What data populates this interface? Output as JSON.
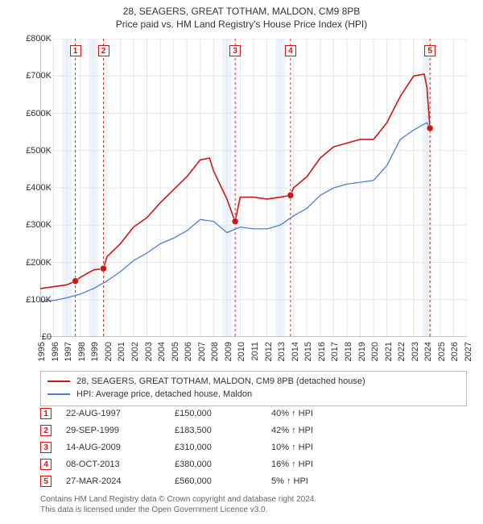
{
  "title_line1": "28, SEAGERS, GREAT TOTHAM, MALDON, CM9 8PB",
  "title_line2": "Price paid vs. HM Land Registry's House Price Index (HPI)",
  "chart": {
    "ylim": [
      0,
      800000
    ],
    "ytick_step": 100000,
    "ytick_labels": [
      "£0",
      "£100K",
      "£200K",
      "£300K",
      "£400K",
      "£500K",
      "£600K",
      "£700K",
      "£800K"
    ],
    "xlim": [
      1995,
      2027
    ],
    "xticks": [
      1995,
      1996,
      1997,
      1998,
      1999,
      2000,
      2001,
      2002,
      2003,
      2004,
      2005,
      2006,
      2007,
      2008,
      2009,
      2010,
      2011,
      2012,
      2013,
      2014,
      2015,
      2016,
      2017,
      2018,
      2019,
      2020,
      2021,
      2022,
      2023,
      2024,
      2025,
      2026,
      2027
    ],
    "grid_color": "#e6e6e6",
    "axis_color": "#888888",
    "background_color": "#ffffff",
    "band_color": "#eef3fb",
    "band_years": [
      1997,
      1999,
      2009,
      2013,
      2024
    ],
    "series": [
      {
        "name": "price_paid",
        "label": "28, SEAGERS, GREAT TOTHAM, MALDON, CM9 8PB (detached house)",
        "color": "#d01515",
        "line_width": 1.6,
        "x": [
          1995,
          1996,
          1997,
          1997.63,
          1998,
          1999,
          1999.74,
          2000,
          2001,
          2002,
          2003,
          2004,
          2005,
          2006,
          2007,
          2007.7,
          2008,
          2009,
          2009.5,
          2009.62,
          2010,
          2011,
          2012,
          2013,
          2013.77,
          2014,
          2015,
          2016,
          2017,
          2018,
          2019,
          2020,
          2021,
          2022,
          2023,
          2023.8,
          2024,
          2024.23,
          2024.35
        ],
        "y": [
          130000,
          135000,
          140000,
          150000,
          160000,
          180000,
          183500,
          215000,
          250000,
          295000,
          320000,
          360000,
          395000,
          430000,
          475000,
          480000,
          445000,
          370000,
          320000,
          310000,
          375000,
          375000,
          370000,
          375000,
          380000,
          400000,
          430000,
          480000,
          510000,
          520000,
          530000,
          530000,
          575000,
          645000,
          700000,
          705000,
          670000,
          560000,
          555000
        ]
      },
      {
        "name": "hpi",
        "label": "HPI: Average price, detached house, Maldon",
        "color": "#4a7fd6",
        "line_width": 1.3,
        "x": [
          1995,
          1996,
          1997,
          1998,
          1999,
          2000,
          2001,
          2002,
          2003,
          2004,
          2005,
          2006,
          2007,
          2008,
          2009,
          2010,
          2011,
          2012,
          2013,
          2014,
          2015,
          2016,
          2017,
          2018,
          2019,
          2020,
          2021,
          2022,
          2023,
          2024,
          2024.35
        ],
        "y": [
          95000,
          98000,
          105000,
          115000,
          130000,
          150000,
          175000,
          205000,
          225000,
          250000,
          265000,
          285000,
          315000,
          310000,
          280000,
          295000,
          290000,
          290000,
          300000,
          325000,
          345000,
          380000,
          400000,
          410000,
          415000,
          420000,
          460000,
          530000,
          555000,
          575000,
          555000
        ]
      }
    ],
    "markers": [
      {
        "n": 1,
        "x": 1997.63,
        "y": 150000
      },
      {
        "n": 2,
        "x": 1999.74,
        "y": 183500
      },
      {
        "n": 3,
        "x": 2009.62,
        "y": 310000
      },
      {
        "n": 4,
        "x": 2013.77,
        "y": 380000
      },
      {
        "n": 5,
        "x": 2024.23,
        "y": 560000
      }
    ],
    "marker_fill": "#d01515",
    "marker_radius": 4
  },
  "legend": {
    "items": [
      {
        "color": "#d01515",
        "label": "28, SEAGERS, GREAT TOTHAM, MALDON, CM9 8PB (detached house)"
      },
      {
        "color": "#4a7fd6",
        "label": "HPI: Average price, detached house, Maldon"
      }
    ]
  },
  "transactions": [
    {
      "n": "1",
      "date": "22-AUG-1997",
      "price": "£150,000",
      "delta": "40% ↑ HPI"
    },
    {
      "n": "2",
      "date": "29-SEP-1999",
      "price": "£183,500",
      "delta": "42% ↑ HPI"
    },
    {
      "n": "3",
      "date": "14-AUG-2009",
      "price": "£310,000",
      "delta": "10% ↑ HPI"
    },
    {
      "n": "4",
      "date": "08-OCT-2013",
      "price": "£380,000",
      "delta": "16% ↑ HPI"
    },
    {
      "n": "5",
      "date": "27-MAR-2024",
      "price": "£560,000",
      "delta": "5% ↑ HPI"
    }
  ],
  "attribution_line1": "Contains HM Land Registry data © Crown copyright and database right 2024.",
  "attribution_line2": "This data is licensed under the Open Government Licence v3.0."
}
